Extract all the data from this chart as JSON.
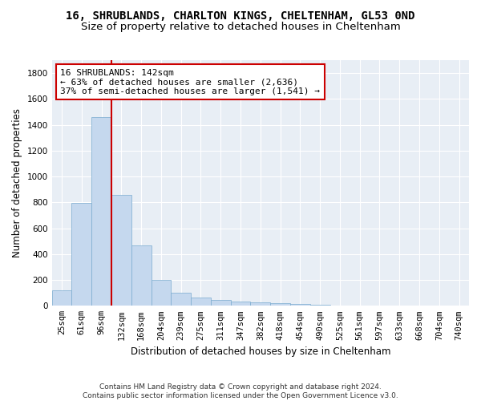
{
  "title_line1": "16, SHRUBLANDS, CHARLTON KINGS, CHELTENHAM, GL53 0ND",
  "title_line2": "Size of property relative to detached houses in Cheltenham",
  "xlabel": "Distribution of detached houses by size in Cheltenham",
  "ylabel": "Number of detached properties",
  "categories": [
    "25sqm",
    "61sqm",
    "96sqm",
    "132sqm",
    "168sqm",
    "204sqm",
    "239sqm",
    "275sqm",
    "311sqm",
    "347sqm",
    "382sqm",
    "418sqm",
    "454sqm",
    "490sqm",
    "525sqm",
    "561sqm",
    "597sqm",
    "633sqm",
    "668sqm",
    "704sqm",
    "740sqm"
  ],
  "values": [
    120,
    795,
    1460,
    860,
    470,
    200,
    100,
    65,
    45,
    35,
    25,
    20,
    15,
    10,
    0,
    0,
    0,
    0,
    0,
    0,
    0
  ],
  "bar_color": "#c5d8ee",
  "bar_edge_color": "#7aabcf",
  "vline_x_index": 3,
  "vline_color": "#cc0000",
  "annotation_text": "16 SHRUBLANDS: 142sqm\n← 63% of detached houses are smaller (2,636)\n37% of semi-detached houses are larger (1,541) →",
  "annotation_box_color": "#ffffff",
  "annotation_box_edge": "#cc0000",
  "ylim": [
    0,
    1900
  ],
  "yticks": [
    0,
    200,
    400,
    600,
    800,
    1000,
    1200,
    1400,
    1600,
    1800
  ],
  "footnote_line1": "Contains HM Land Registry data © Crown copyright and database right 2024.",
  "footnote_line2": "Contains public sector information licensed under the Open Government Licence v3.0.",
  "background_color": "#ffffff",
  "plot_bg_color": "#e8eef5",
  "grid_color": "#ffffff",
  "title_fontsize": 10,
  "subtitle_fontsize": 9.5,
  "axis_label_fontsize": 8.5,
  "tick_fontsize": 7.5,
  "annotation_fontsize": 8,
  "footnote_fontsize": 6.5
}
